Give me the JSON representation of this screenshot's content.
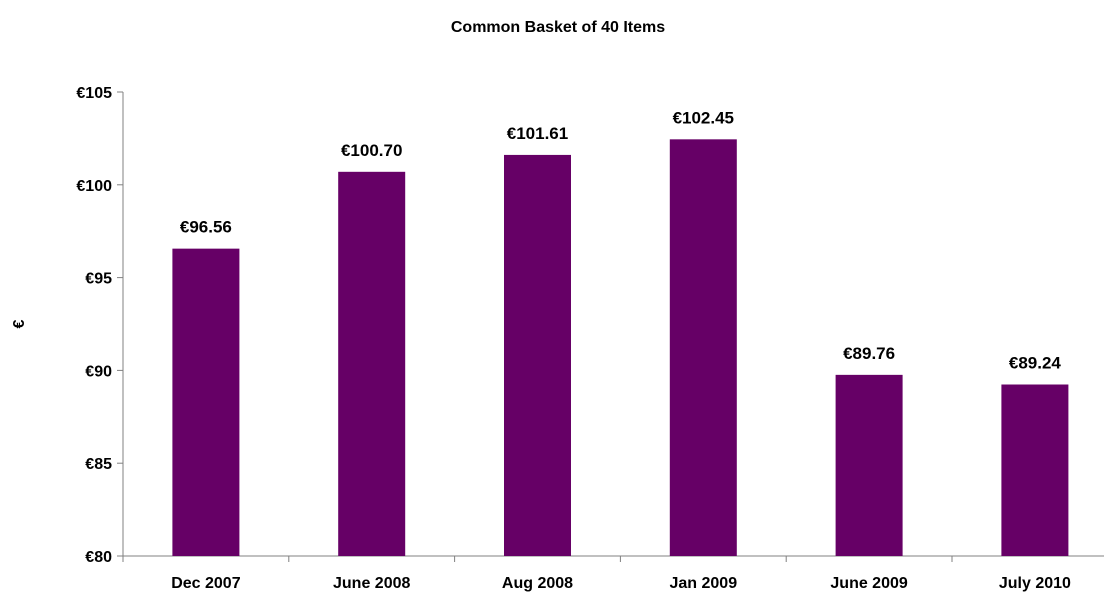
{
  "chart_data": {
    "type": "bar",
    "title": "Common Basket of 40 Items",
    "xlabel": "",
    "ylabel": "€",
    "categories": [
      "Dec 2007",
      "June 2008",
      "Aug 2008",
      "Jan 2009",
      "June 2009",
      "July 2010"
    ],
    "values": [
      96.56,
      100.7,
      101.61,
      102.45,
      89.76,
      89.24
    ],
    "data_labels": [
      "€96.56",
      "€100.70",
      "€101.61",
      "€102.45",
      "€89.76",
      "€89.24"
    ],
    "ylim": [
      80,
      105
    ],
    "yticks": [
      80,
      85,
      90,
      95,
      100,
      105
    ],
    "ytick_labels": [
      "€80",
      "€85",
      "€90",
      "€95",
      "€100",
      "€105"
    ],
    "bar_color": "#660066",
    "grid": false,
    "legend": "none"
  }
}
